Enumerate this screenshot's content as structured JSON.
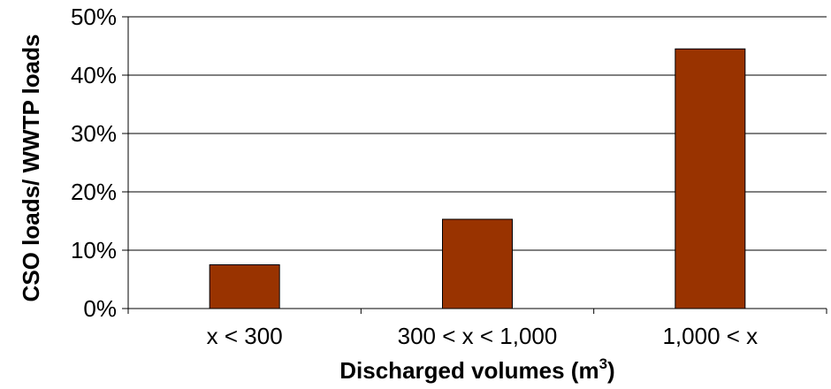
{
  "chart_data": {
    "type": "bar",
    "categories": [
      "x < 300",
      "300 < x < 1,000",
      "1,000 < x"
    ],
    "values": [
      7.5,
      15.3,
      44.5
    ],
    "value_unit": "%",
    "title": "",
    "xlabel": "Discharged volumes (m",
    "xlabel_superscript": "3",
    "xlabel_suffix": ")",
    "ylabel": "CSO loads/ WWTP loads",
    "ylim": [
      0,
      50
    ],
    "yticks": [
      0,
      10,
      20,
      30,
      40,
      50
    ],
    "ytick_labels": [
      "0%",
      "10%",
      "20%",
      "30%",
      "40%",
      "50%"
    ],
    "grid": "horizontal",
    "legend": "none",
    "bar_color": "#993300",
    "bar_edge_color": "#000000",
    "grid_color": "#000000",
    "axis_color": "#000000"
  }
}
